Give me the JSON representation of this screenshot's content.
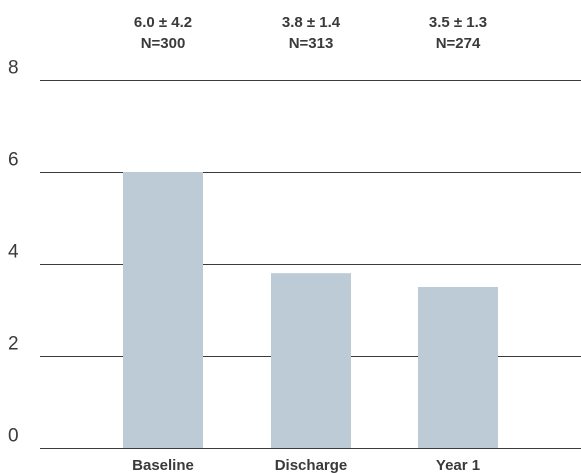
{
  "chart_data": {
    "type": "bar",
    "categories": [
      "Baseline",
      "Discharge",
      "Year 1"
    ],
    "values": [
      6.0,
      3.8,
      3.5
    ],
    "annotations": [
      {
        "stat": "6.0 ± 4.2",
        "n": "N=300"
      },
      {
        "stat": "3.8 ± 1.4",
        "n": "N=313"
      },
      {
        "stat": "3.5 ± 1.3",
        "n": "N=274"
      }
    ],
    "yticks": [
      0,
      2,
      4,
      6,
      8
    ],
    "ylim": [
      0,
      8
    ],
    "grid": true,
    "bar_color": "#bccbd5",
    "line_color": "#3a3a3a",
    "title": "",
    "xlabel": "",
    "ylabel": ""
  }
}
